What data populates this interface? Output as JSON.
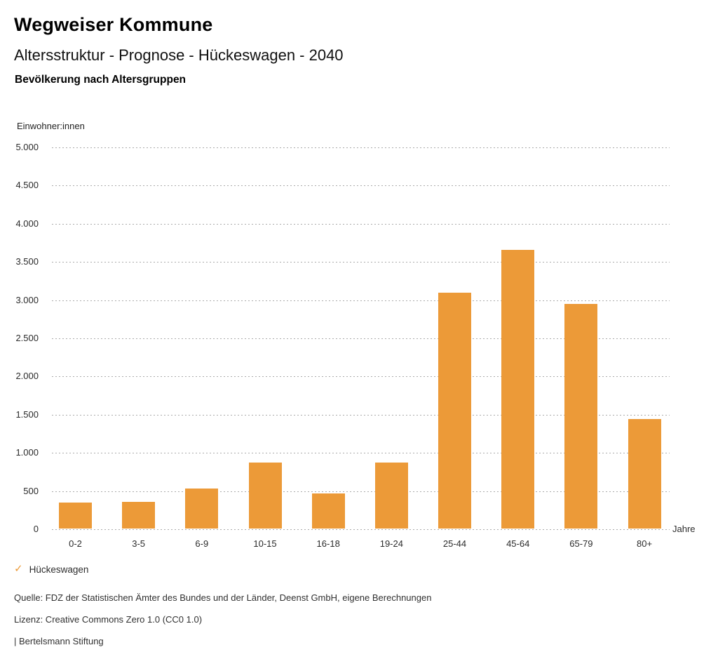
{
  "header": {
    "app_title": "Wegweiser Kommune",
    "page_title": "Altersstruktur - Prognose - Hückeswagen - 2040",
    "chart_title": "Bevölkerung nach Altersgruppen"
  },
  "chart_data": {
    "type": "bar",
    "title": "Bevölkerung nach Altersgruppen",
    "ylabel": "Einwohner:innen",
    "xlabel": "Jahre",
    "categories": [
      "0-2",
      "3-5",
      "6-9",
      "10-15",
      "16-18",
      "19-24",
      "25-44",
      "45-64",
      "65-79",
      "80+"
    ],
    "series": [
      {
        "name": "Hückeswagen",
        "values": [
          340,
          350,
          520,
          860,
          460,
          860,
          3090,
          3650,
          2940,
          1430
        ]
      }
    ],
    "ylim": [
      0,
      5000
    ],
    "ytick_step": 500,
    "ytick_labels": [
      "0",
      "500",
      "1.000",
      "1.500",
      "2.000",
      "2.500",
      "3.000",
      "3.500",
      "4.000",
      "4.500",
      "5.000"
    ],
    "grid": "horizontal-dotted",
    "legend_position": "bottom-left",
    "bar_color": "#EC9A38"
  },
  "legend": {
    "check_icon": "✓",
    "label": "Hückeswagen",
    "check_color": "#EC9A38"
  },
  "footer": {
    "source": "Quelle: FDZ der Statistischen Ämter des Bundes und der Länder, Deenst GmbH, eigene Berechnungen",
    "license": "Lizenz: Creative Commons Zero 1.0 (CC0 1.0)",
    "attribution": "| Bertelsmann Stiftung"
  }
}
